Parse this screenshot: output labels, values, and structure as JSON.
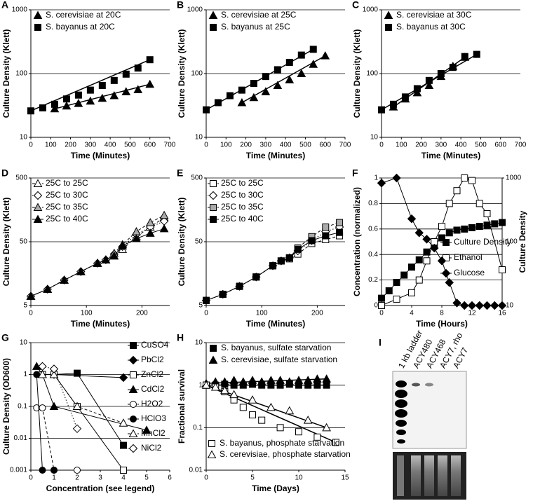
{
  "chart_data": [
    {
      "type": "scatter",
      "panel": "A",
      "xlabel": "Time (Minutes)",
      "ylabel": "Culture Density (Klett)",
      "xlim": [
        0,
        700
      ],
      "xticks": [
        0,
        100,
        200,
        300,
        400,
        500,
        600,
        700
      ],
      "ylim": [
        10,
        1000
      ],
      "yticks": [
        10,
        100,
        1000
      ],
      "ylog": true,
      "grid": true,
      "legend": "upper left",
      "series": [
        {
          "name": "S. cerevisiae at 20C",
          "color": "#000000",
          "marker": "triangle",
          "fill": "#000000",
          "line": "fit",
          "x": [
            120,
            180,
            240,
            300,
            360,
            420,
            480,
            540,
            600
          ],
          "values": [
            28,
            31,
            34,
            37,
            41,
            45,
            52,
            56,
            68
          ]
        },
        {
          "name": "S. bayanus at 20C",
          "color": "#000000",
          "marker": "square",
          "fill": "#000000",
          "line": "fit",
          "x": [
            0,
            60,
            120,
            180,
            240,
            300,
            360,
            420,
            480,
            540,
            600
          ],
          "values": [
            26,
            29,
            33,
            40,
            46,
            55,
            65,
            78,
            98,
            122,
            165
          ]
        }
      ]
    },
    {
      "type": "scatter",
      "panel": "B",
      "xlabel": "Time (Minutes)",
      "ylabel": "Culture Density (Klett)",
      "xlim": [
        0,
        700
      ],
      "xticks": [
        0,
        100,
        200,
        300,
        400,
        500,
        600,
        700
      ],
      "ylim": [
        10,
        1000
      ],
      "yticks": [
        10,
        100,
        1000
      ],
      "ylog": true,
      "grid": true,
      "legend": "upper left",
      "series": [
        {
          "name": "S. cerevisiae at 25C",
          "color": "#000000",
          "marker": "triangle",
          "fill": "#000000",
          "line": "fit",
          "x": [
            180,
            240,
            300,
            360,
            420,
            480,
            540,
            600
          ],
          "values": [
            35,
            42,
            52,
            65,
            80,
            100,
            140,
            190
          ]
        },
        {
          "name": "S. bayanus at 25C",
          "color": "#000000",
          "marker": "square",
          "fill": "#000000",
          "line": "fit",
          "x": [
            0,
            60,
            120,
            180,
            240,
            300,
            360,
            420,
            480,
            540
          ],
          "values": [
            27,
            35,
            45,
            55,
            70,
            90,
            115,
            150,
            195,
            240
          ]
        }
      ]
    },
    {
      "type": "scatter",
      "panel": "C",
      "xlabel": "Time (Minutes)",
      "ylabel": "Culture Density (Klett)",
      "xlim": [
        0,
        700
      ],
      "xticks": [
        0,
        100,
        200,
        300,
        400,
        500,
        600,
        700
      ],
      "ylim": [
        10,
        1000
      ],
      "yticks": [
        10,
        100,
        1000
      ],
      "ylog": true,
      "grid": true,
      "legend": "upper left",
      "series": [
        {
          "name": "S. cerevisiae at 30C",
          "color": "#000000",
          "marker": "triangle",
          "fill": "#000000",
          "line": "fit",
          "x": [
            60,
            120,
            180,
            240,
            300,
            360,
            420
          ],
          "values": [
            30,
            40,
            50,
            65,
            90,
            130,
            180
          ]
        },
        {
          "name": "S. bayanus at 30C",
          "color": "#000000",
          "marker": "square",
          "fill": "#000000",
          "line": "fit",
          "x": [
            0,
            60,
            120,
            180,
            240,
            300,
            360,
            420,
            480
          ],
          "values": [
            27,
            33,
            43,
            58,
            78,
            100,
            125,
            185,
            200
          ]
        }
      ]
    },
    {
      "type": "line",
      "panel": "D",
      "xlabel": "Time (Minutes)",
      "ylabel": "Culture Density (Klett)",
      "xlim": [
        0,
        250
      ],
      "xticks": [
        0,
        100,
        200
      ],
      "ylim": [
        5,
        500
      ],
      "yticks": [
        5,
        50,
        500
      ],
      "ylog": true,
      "grid": true,
      "legend": "upper left",
      "series": [
        {
          "name": "25C to 25C",
          "color": "#000000",
          "marker": "triangle",
          "fill": "#ffffff",
          "line": "dashed",
          "x": [
            0,
            30,
            60,
            90,
            120,
            135,
            150,
            165,
            190,
            215,
            240
          ],
          "values": [
            7,
            9,
            12.5,
            17,
            23,
            26,
            30,
            38,
            60,
            85,
            120
          ]
        },
        {
          "name": "25C to 30C",
          "color": "#000000",
          "marker": "diamond",
          "fill": "#ffffff",
          "line": "dotted",
          "x": [
            0,
            30,
            60,
            90,
            120,
            135,
            150,
            165,
            190,
            215,
            240
          ],
          "values": [
            7,
            9,
            12.5,
            17,
            23,
            26,
            32,
            42,
            65,
            85,
            105
          ]
        },
        {
          "name": "25C to 35C",
          "color": "#000000",
          "marker": "triangle",
          "fill": "#aaaaaa",
          "line": "dashed",
          "x": [
            0,
            30,
            60,
            90,
            120,
            135,
            150,
            165,
            190,
            215,
            240
          ],
          "values": [
            7,
            9,
            12.5,
            17,
            23,
            26,
            33,
            45,
            72,
            100,
            130
          ]
        },
        {
          "name": "25C to 40C",
          "color": "#000000",
          "marker": "triangle",
          "fill": "#000000",
          "line": "solid",
          "x": [
            0,
            30,
            60,
            90,
            120,
            135,
            150,
            165,
            190,
            215,
            240
          ],
          "values": [
            7,
            9,
            12.5,
            17,
            23,
            26,
            30,
            43,
            56,
            68,
            80
          ]
        }
      ]
    },
    {
      "type": "line",
      "panel": "E",
      "xlabel": "Time (Minutes)",
      "ylabel": "Culture Density (Klett)",
      "xlim": [
        0,
        250
      ],
      "xticks": [
        0,
        100,
        200
      ],
      "ylim": [
        5,
        500
      ],
      "yticks": [
        5,
        50,
        500
      ],
      "ylog": true,
      "grid": true,
      "legend": "upper left",
      "series": [
        {
          "name": "25C to 25C",
          "color": "#000000",
          "marker": "square",
          "fill": "#ffffff",
          "line": "dashed",
          "x": [
            0,
            30,
            60,
            90,
            120,
            135,
            150,
            165,
            190,
            215,
            240
          ],
          "values": [
            6,
            7.5,
            10,
            14,
            21,
            25,
            27,
            32,
            47,
            54,
            62
          ]
        },
        {
          "name": "25C to 30C",
          "color": "#000000",
          "marker": "diamond",
          "fill": "#ffffff",
          "line": "dotted",
          "x": [
            0,
            30,
            60,
            90,
            120,
            135,
            150,
            165,
            190,
            215,
            240
          ],
          "values": [
            6,
            7.5,
            10,
            14,
            21,
            25,
            28,
            36,
            52,
            72,
            85
          ]
        },
        {
          "name": "25C to 35C",
          "color": "#000000",
          "marker": "square",
          "fill": "#aaaaaa",
          "line": "dashed",
          "x": [
            0,
            30,
            60,
            90,
            120,
            135,
            150,
            165,
            190,
            215,
            240
          ],
          "values": [
            6,
            7.5,
            10,
            14,
            21,
            25,
            28,
            40,
            60,
            85,
            100
          ]
        },
        {
          "name": "25C to 40C",
          "color": "#000000",
          "marker": "square",
          "fill": "#000000",
          "line": "solid",
          "x": [
            0,
            30,
            60,
            90,
            120,
            135,
            150,
            165,
            190,
            215,
            240
          ],
          "values": [
            6,
            7.5,
            10,
            14,
            21,
            25,
            28,
            38,
            52,
            62,
            70
          ]
        }
      ]
    },
    {
      "type": "line",
      "panel": "F",
      "xlabel": "Time (Hours)",
      "ylabel": "Concentration (normalized)",
      "y2label": "Culture Density",
      "xlim": [
        0,
        16
      ],
      "xticks": [
        0,
        4,
        8,
        12,
        16
      ],
      "ylim": [
        0,
        1
      ],
      "yticks": [
        0,
        0.2,
        0.4,
        0.6,
        0.8,
        1
      ],
      "y2lim": [
        10,
        1000
      ],
      "y2ticks": [
        10,
        100,
        1000
      ],
      "y2log": true,
      "grid": true,
      "legend": "center right",
      "series": [
        {
          "name": "Culture Density",
          "color": "#000000",
          "marker": "square",
          "fill": "#000000",
          "line": "solid",
          "axis": "y2",
          "x": [
            0,
            1,
            2,
            3,
            4,
            5,
            6,
            7,
            8,
            9,
            10,
            11,
            12,
            13,
            14,
            15,
            16
          ],
          "values": [
            13,
            17,
            23,
            30,
            40,
            52,
            69,
            91,
            115,
            138,
            152,
            158,
            166,
            174,
            182,
            191,
            200
          ]
        },
        {
          "name": "Ethanol",
          "color": "#000000",
          "marker": "square",
          "fill": "#ffffff",
          "line": "solid",
          "x": [
            0,
            2,
            4,
            5,
            6,
            7,
            8,
            9,
            10,
            11,
            12,
            13,
            14,
            16
          ],
          "values": [
            0,
            0.05,
            0.1,
            0.2,
            0.35,
            0.5,
            0.62,
            0.8,
            0.9,
            1,
            0.98,
            0.8,
            0.72,
            0.28
          ]
        },
        {
          "name": "Glucose",
          "color": "#000000",
          "marker": "diamond",
          "fill": "#000000",
          "line": "solid",
          "x": [
            0,
            2,
            4,
            5,
            6,
            7,
            8,
            9,
            10,
            11,
            12,
            13,
            14,
            15,
            16
          ],
          "values": [
            0.96,
            1,
            0.68,
            0.57,
            0.52,
            0.45,
            0.35,
            0.18,
            0.02,
            0,
            0,
            0,
            0,
            0,
            0
          ]
        }
      ]
    },
    {
      "type": "line",
      "panel": "G",
      "xlabel": "Concentration (see legend)",
      "ylabel": "Culture Density (OD600)",
      "xlim": [
        0,
        6
      ],
      "xticks": [
        0,
        1,
        2,
        3,
        4,
        5,
        6
      ],
      "ylim": [
        0.001,
        10
      ],
      "yticks": [
        0.001,
        0.01,
        0.1,
        1,
        10
      ],
      "ylog": true,
      "grid": true,
      "legend": "right",
      "series": [
        {
          "name": "CuSO4",
          "color": "#000000",
          "marker": "square",
          "fill": "#000000",
          "line": "solid",
          "x": [
            0.5,
            1,
            2,
            4
          ],
          "values": [
            1,
            1,
            1.1,
            0.006
          ]
        },
        {
          "name": "PbCl2",
          "color": "#000000",
          "marker": "diamond",
          "fill": "#000000",
          "line": "solid",
          "x": [
            1,
            4
          ],
          "values": [
            1,
            0.8
          ]
        },
        {
          "name": "ZnCl2",
          "color": "#000000",
          "marker": "square",
          "fill": "#ffffff",
          "line": "solid",
          "x": [
            0.5,
            1,
            2,
            4
          ],
          "values": [
            1,
            1,
            0.1,
            0.001
          ]
        },
        {
          "name": "CdCl2",
          "color": "#000000",
          "marker": "triangle",
          "fill": "#000000",
          "line": "solid",
          "x": [
            0.25,
            0.5,
            1,
            5
          ],
          "values": [
            1.8,
            1,
            0.1,
            0.018
          ]
        },
        {
          "name": "H2O2",
          "color": "#000000",
          "marker": "circle",
          "fill": "#ffffff",
          "line": "dashed",
          "x": [
            0.25,
            0.5,
            1,
            2
          ],
          "values": [
            0.09,
            0.09,
            0.001,
            0.001
          ]
        },
        {
          "name": "HClO3",
          "color": "#000000",
          "marker": "circle",
          "fill": "#000000",
          "line": "solid",
          "x": [
            0.25,
            0.5,
            1
          ],
          "values": [
            1,
            0.001,
            0.001
          ]
        },
        {
          "name": "MnCl2",
          "color": "#000000",
          "marker": "triangle",
          "fill": "#ffffff",
          "line": "dashed",
          "x": [
            0.5,
            1,
            2,
            4
          ],
          "values": [
            1,
            1,
            0.1,
            0.03
          ]
        },
        {
          "name": "NiCl2",
          "color": "#000000",
          "marker": "diamond",
          "fill": "#ffffff",
          "line": "dotted",
          "x": [
            0.5,
            1,
            2
          ],
          "values": [
            1.8,
            1.5,
            0.02
          ]
        }
      ]
    },
    {
      "type": "scatter",
      "panel": "H",
      "xlabel": "Time (Days)",
      "ylabel": "Fractional survival",
      "xlim": [
        0,
        15
      ],
      "xticks": [
        0,
        5,
        10,
        15
      ],
      "ylim": [
        0.01,
        10
      ],
      "yticks": [
        0.01,
        0.1,
        1,
        10
      ],
      "ylog": true,
      "grid": true,
      "legend": "upper left",
      "series": [
        {
          "name": "S. bayanus, sulfate starvation",
          "color": "#000000",
          "marker": "square",
          "fill": "#000000",
          "line": "fit",
          "x": [
            0,
            1,
            2,
            3,
            4,
            5,
            6,
            7,
            8,
            9,
            10,
            11,
            12,
            13
          ],
          "values": [
            1,
            1,
            1.05,
            1,
            1,
            1.05,
            1,
            1,
            1,
            1.05,
            1,
            1,
            1,
            1
          ]
        },
        {
          "name": "S. cerevisiae, sulfate starvation",
          "color": "#000000",
          "marker": "triangle",
          "fill": "#000000",
          "line": "fit",
          "x": [
            0,
            1,
            2,
            3,
            4,
            5,
            6,
            7,
            8,
            9,
            10,
            11,
            12,
            13
          ],
          "values": [
            1.1,
            1.2,
            1.2,
            1.3,
            1.2,
            1.3,
            1.2,
            1.3,
            1.3,
            1.2,
            1.3,
            1.3,
            1.4,
            1.4
          ]
        },
        {
          "name": "S. bayanus, phosphate starvation",
          "color": "#000000",
          "marker": "square",
          "fill": "#ffffff",
          "line": "fit",
          "x": [
            0,
            1,
            2,
            3,
            4,
            5,
            6,
            8,
            10,
            12,
            14
          ],
          "values": [
            1,
            0.9,
            0.7,
            0.45,
            0.3,
            0.2,
            0.15,
            0.1,
            0.08,
            0.06,
            0.045
          ]
        },
        {
          "name": "S. cerevisiae, phosphate starvation",
          "color": "#000000",
          "marker": "triangle",
          "fill": "#ffffff",
          "line": "fit",
          "x": [
            0,
            1,
            2,
            3,
            5,
            7,
            9,
            11,
            13
          ],
          "values": [
            1,
            0.9,
            0.75,
            0.6,
            0.45,
            0.3,
            0.25,
            0.15,
            0.1
          ]
        }
      ]
    }
  ],
  "gel": {
    "panel": "I",
    "lanes": [
      "1 kb ladder",
      "ACY480",
      "ACY468",
      "ACY7, rho",
      "ACY7"
    ]
  }
}
